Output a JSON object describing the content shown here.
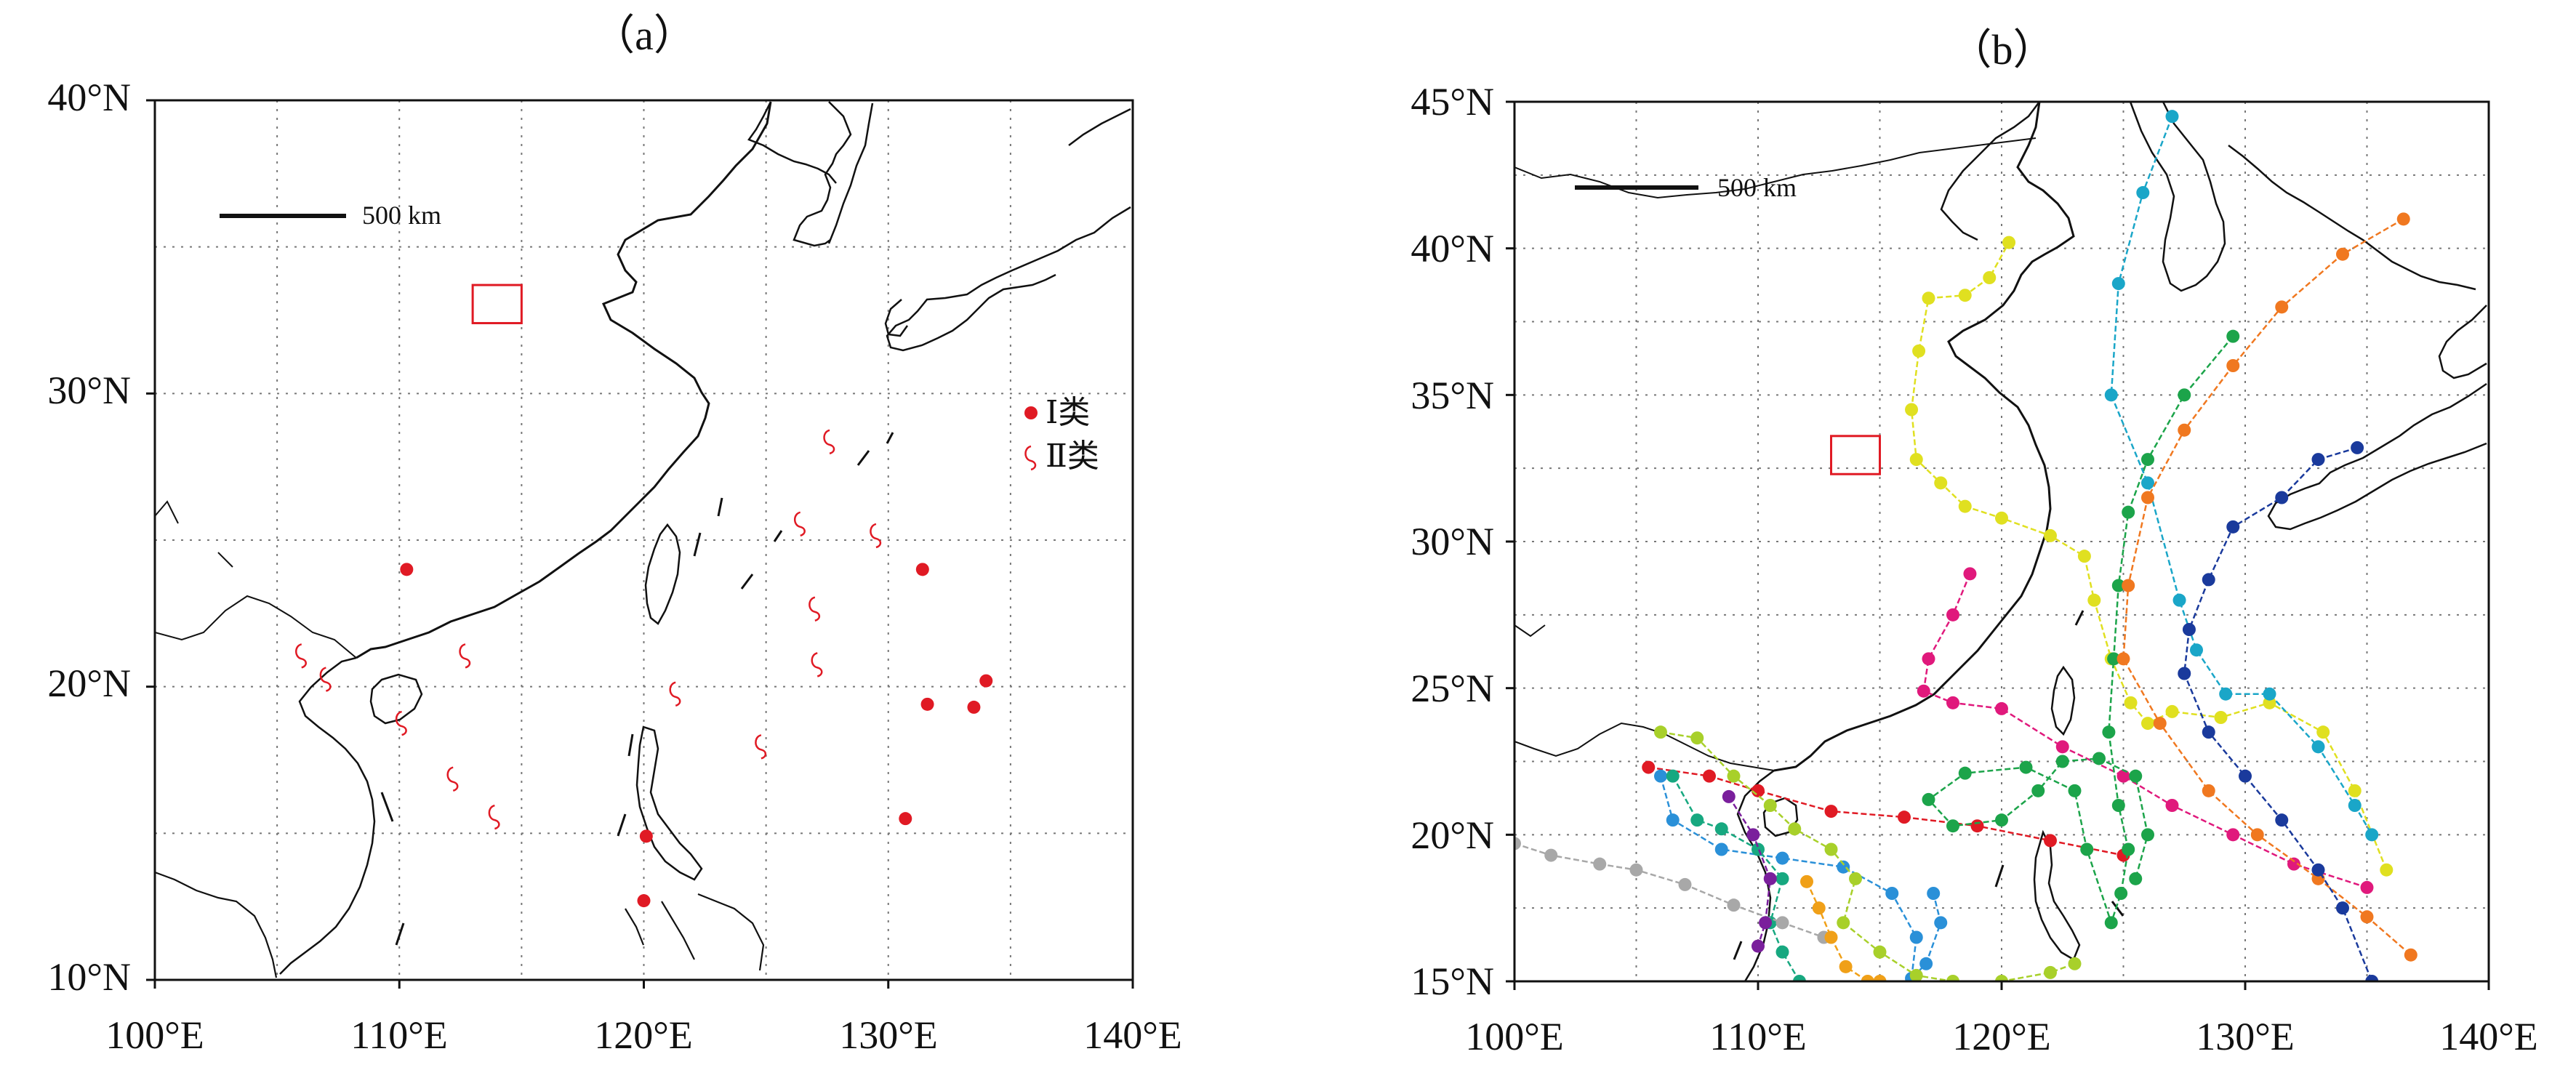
{
  "panel_a": {
    "label": "（a）",
    "lat_labels": [
      "40°N",
      "30°N",
      "20°N",
      "10°N"
    ],
    "lon_labels": [
      "100°E",
      "110°E",
      "120°E",
      "130°E",
      "140°E"
    ],
    "lon_range": [
      100,
      140
    ],
    "lat_range": [
      10,
      40
    ],
    "scale_label": "500 km",
    "legend": [
      {
        "label": "Ⅰ类",
        "symbol": "dot",
        "color": "#e01a24"
      },
      {
        "label": "Ⅱ类",
        "symbol": "spiral",
        "color": "#e01a24"
      }
    ],
    "study_box": {
      "lon": [
        113,
        115
      ],
      "lat": [
        32.4,
        33.7
      ]
    },
    "class_I_points": [
      [
        110.3,
        24.0
      ],
      [
        131.4,
        24.0
      ],
      [
        131.6,
        19.4
      ],
      [
        133.5,
        19.3
      ],
      [
        134.0,
        20.2
      ],
      [
        130.7,
        15.5
      ],
      [
        120.1,
        14.9
      ],
      [
        120.0,
        12.7
      ]
    ],
    "class_II_points": [
      [
        127.6,
        28.4
      ],
      [
        126.4,
        25.6
      ],
      [
        129.5,
        25.2
      ],
      [
        127.0,
        22.7
      ],
      [
        127.1,
        20.8
      ],
      [
        121.3,
        19.8
      ],
      [
        124.8,
        18.0
      ],
      [
        106.0,
        21.1
      ],
      [
        107.0,
        20.3
      ],
      [
        112.7,
        21.1
      ],
      [
        110.1,
        18.8
      ],
      [
        112.2,
        16.9
      ],
      [
        113.9,
        15.6
      ]
    ]
  },
  "panel_b": {
    "label": "（b）",
    "lat_labels": [
      "45°N",
      "40°N",
      "35°N",
      "30°N",
      "25°N",
      "20°N",
      "15°N"
    ],
    "lon_labels": [
      "100°E",
      "110°E",
      "120°E",
      "130°E",
      "140°E"
    ],
    "lon_range": [
      100,
      140
    ],
    "lat_range": [
      15,
      45
    ],
    "scale_label": "500 km",
    "study_box": {
      "lon": [
        113,
        115
      ],
      "lat": [
        32.3,
        33.6
      ]
    },
    "tracks": [
      {
        "color": "#e0e020",
        "points": [
          [
            135.8,
            18.8
          ],
          [
            134.5,
            21.5
          ],
          [
            133.2,
            23.5
          ],
          [
            131.0,
            24.5
          ],
          [
            129.0,
            24.0
          ],
          [
            127.0,
            24.2
          ],
          [
            126.0,
            23.8
          ],
          [
            125.3,
            24.5
          ],
          [
            124.5,
            26.0
          ],
          [
            123.8,
            28.0
          ],
          [
            123.4,
            29.5
          ],
          [
            122.0,
            30.2
          ],
          [
            120.0,
            30.8
          ],
          [
            118.5,
            31.2
          ],
          [
            117.5,
            32.0
          ],
          [
            116.5,
            32.8
          ],
          [
            116.3,
            34.5
          ],
          [
            116.6,
            36.5
          ],
          [
            117.0,
            38.3
          ],
          [
            118.5,
            38.4
          ],
          [
            119.5,
            39.0
          ],
          [
            120.3,
            40.2
          ]
        ]
      },
      {
        "color": "#e01a24",
        "points": [
          [
            105.5,
            22.3
          ],
          [
            108.0,
            22.0
          ],
          [
            110.0,
            21.5
          ],
          [
            113.0,
            20.8
          ],
          [
            116.0,
            20.6
          ],
          [
            119.0,
            20.3
          ],
          [
            122.0,
            19.8
          ],
          [
            125.0,
            19.3
          ]
        ]
      },
      {
        "color": "#e0197c",
        "points": [
          [
            118.7,
            28.9
          ],
          [
            118.0,
            27.5
          ],
          [
            117.0,
            26.0
          ],
          [
            116.8,
            24.9
          ],
          [
            118.0,
            24.5
          ],
          [
            120.0,
            24.3
          ],
          [
            122.5,
            23.0
          ],
          [
            125.0,
            22.0
          ],
          [
            127.0,
            21.0
          ],
          [
            129.5,
            20.0
          ],
          [
            132.0,
            19.0
          ],
          [
            135.0,
            18.2
          ]
        ]
      },
      {
        "color": "#1ca44a",
        "points": [
          [
            129.5,
            37.0
          ],
          [
            127.5,
            35.0
          ],
          [
            126.0,
            32.8
          ],
          [
            125.2,
            31.0
          ],
          [
            124.8,
            28.5
          ],
          [
            124.6,
            26.0
          ],
          [
            124.4,
            23.5
          ],
          [
            124.8,
            21.0
          ],
          [
            125.2,
            19.5
          ],
          [
            124.9,
            18.0
          ],
          [
            124.5,
            17.0
          ],
          [
            123.5,
            19.5
          ],
          [
            123.0,
            21.5
          ],
          [
            121.0,
            22.3
          ],
          [
            118.5,
            22.1
          ],
          [
            117.0,
            21.2
          ],
          [
            118.0,
            20.3
          ],
          [
            120.0,
            20.5
          ],
          [
            121.5,
            21.5
          ],
          [
            122.5,
            22.5
          ],
          [
            124.0,
            22.6
          ],
          [
            125.5,
            22.0
          ],
          [
            126.0,
            20.0
          ],
          [
            125.5,
            18.5
          ]
        ]
      },
      {
        "color": "#1aa6c8",
        "points": [
          [
            127.0,
            44.5
          ],
          [
            125.8,
            41.9
          ],
          [
            124.8,
            38.8
          ],
          [
            124.5,
            35.0
          ],
          [
            126.0,
            32.0
          ],
          [
            127.3,
            28.0
          ],
          [
            128.0,
            26.3
          ],
          [
            129.2,
            24.8
          ],
          [
            131.0,
            24.8
          ],
          [
            133.0,
            23.0
          ],
          [
            134.5,
            21.0
          ],
          [
            135.2,
            20.0
          ]
        ]
      },
      {
        "color": "#f07820",
        "points": [
          [
            136.5,
            41.0
          ],
          [
            134.0,
            39.8
          ],
          [
            131.5,
            38.0
          ],
          [
            129.5,
            36.0
          ],
          [
            127.5,
            33.8
          ],
          [
            126.0,
            31.5
          ],
          [
            125.2,
            28.5
          ],
          [
            125.0,
            26.0
          ],
          [
            126.5,
            23.8
          ],
          [
            128.5,
            21.5
          ],
          [
            130.5,
            20.0
          ],
          [
            133.0,
            18.5
          ],
          [
            135.0,
            17.2
          ],
          [
            136.8,
            15.9
          ]
        ]
      },
      {
        "color": "#1a3a9c",
        "points": [
          [
            134.6,
            33.2
          ],
          [
            133.0,
            32.8
          ],
          [
            131.5,
            31.5
          ],
          [
            129.5,
            30.5
          ],
          [
            128.5,
            28.7
          ],
          [
            127.7,
            27.0
          ],
          [
            127.5,
            25.5
          ],
          [
            128.5,
            23.5
          ],
          [
            130.0,
            22.0
          ],
          [
            131.5,
            20.5
          ],
          [
            133.0,
            18.8
          ],
          [
            134.0,
            17.5
          ],
          [
            135.2,
            15.0
          ]
        ]
      },
      {
        "color": "#2a90d8",
        "points": [
          [
            106.0,
            22.0
          ],
          [
            106.5,
            20.5
          ],
          [
            108.5,
            19.5
          ],
          [
            111.0,
            19.2
          ],
          [
            113.5,
            18.9
          ],
          [
            115.5,
            18.0
          ],
          [
            116.5,
            16.5
          ],
          [
            116.3,
            15.1
          ],
          [
            116.9,
            15.6
          ],
          [
            117.5,
            17.0
          ],
          [
            117.2,
            18.0
          ]
        ]
      },
      {
        "color": "#17a880",
        "points": [
          [
            106.5,
            22.0
          ],
          [
            107.5,
            20.5
          ],
          [
            108.5,
            20.2
          ],
          [
            110.0,
            19.5
          ],
          [
            111.0,
            18.5
          ],
          [
            110.5,
            17.0
          ],
          [
            111.0,
            16.0
          ],
          [
            111.7,
            15.0
          ]
        ]
      },
      {
        "color": "#a8d02a",
        "points": [
          [
            106.0,
            23.5
          ],
          [
            107.5,
            23.3
          ],
          [
            109.0,
            22.0
          ],
          [
            110.5,
            21.0
          ],
          [
            111.5,
            20.2
          ],
          [
            113.0,
            19.5
          ],
          [
            114.0,
            18.5
          ],
          [
            113.5,
            17.0
          ],
          [
            115.0,
            16.0
          ],
          [
            116.5,
            15.2
          ],
          [
            118.0,
            15.0
          ],
          [
            120.0,
            15.0
          ],
          [
            122.0,
            15.3
          ],
          [
            123.0,
            15.6
          ]
        ]
      },
      {
        "color": "#a8a8a8",
        "points": [
          [
            100.0,
            19.7
          ],
          [
            101.5,
            19.3
          ],
          [
            103.5,
            19.0
          ],
          [
            105.0,
            18.8
          ],
          [
            107.0,
            18.3
          ],
          [
            109.0,
            17.6
          ],
          [
            111.0,
            17.0
          ],
          [
            112.7,
            16.5
          ]
        ]
      },
      {
        "color": "#7a1f9c",
        "points": [
          [
            108.8,
            21.3
          ],
          [
            109.8,
            20.0
          ],
          [
            110.5,
            18.5
          ],
          [
            110.3,
            17.0
          ],
          [
            110.0,
            16.2
          ]
        ]
      },
      {
        "color": "#f0a018",
        "points": [
          [
            112.0,
            18.4
          ],
          [
            112.5,
            17.5
          ],
          [
            113.0,
            16.5
          ],
          [
            113.6,
            15.5
          ],
          [
            114.5,
            15.0
          ],
          [
            115.0,
            15.0
          ]
        ]
      }
    ]
  }
}
